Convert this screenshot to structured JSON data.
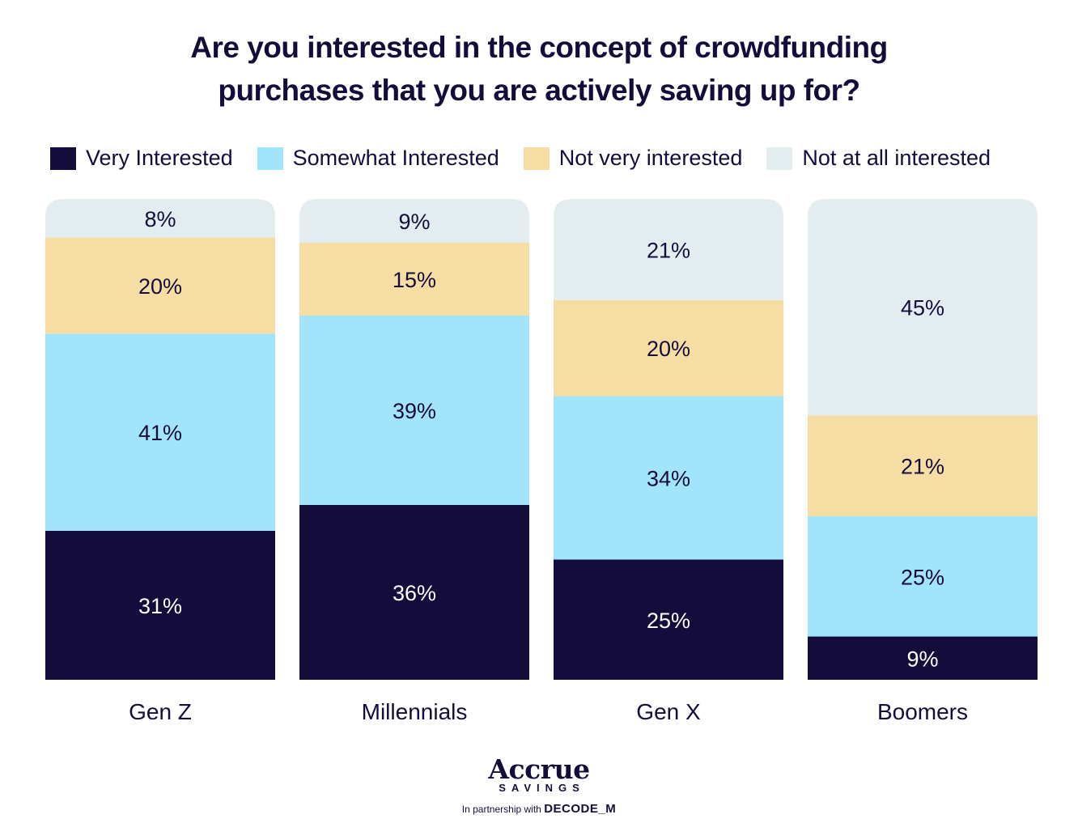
{
  "chart_data": {
    "type": "bar",
    "stacked": true,
    "title": "Are you interested in the concept of crowdfunding purchases that you are actively saving up for?",
    "title_lines": [
      "Are you interested in the concept of crowdfunding",
      "purchases that you are actively saving up for?"
    ],
    "categories": [
      "Gen Z",
      "Millennials",
      "Gen X",
      "Boomers"
    ],
    "series": [
      {
        "name": "Very Interested",
        "color": "#140d3b",
        "label_color": "#ffffff",
        "values": [
          31,
          36,
          25,
          9
        ]
      },
      {
        "name": "Somewhat Interested",
        "color": "#a3e4fd",
        "label_color": "#140d3b",
        "values": [
          41,
          39,
          34,
          25
        ]
      },
      {
        "name": "Not very interested",
        "color": "#f6dda3",
        "label_color": "#140d3b",
        "values": [
          20,
          15,
          20,
          21
        ]
      },
      {
        "name": "Not at all interested",
        "color": "#e3edf0",
        "label_color": "#140d3b",
        "values": [
          8,
          9,
          21,
          45
        ]
      }
    ],
    "value_suffix": "%",
    "legend_position": "top",
    "grid": false,
    "xlabel": "",
    "ylabel": ""
  },
  "branding": {
    "logo_name": "Accrue",
    "logo_sub": "SAVINGS",
    "partner_prefix": "In partnership with",
    "partner_name": "DECODE_M"
  }
}
